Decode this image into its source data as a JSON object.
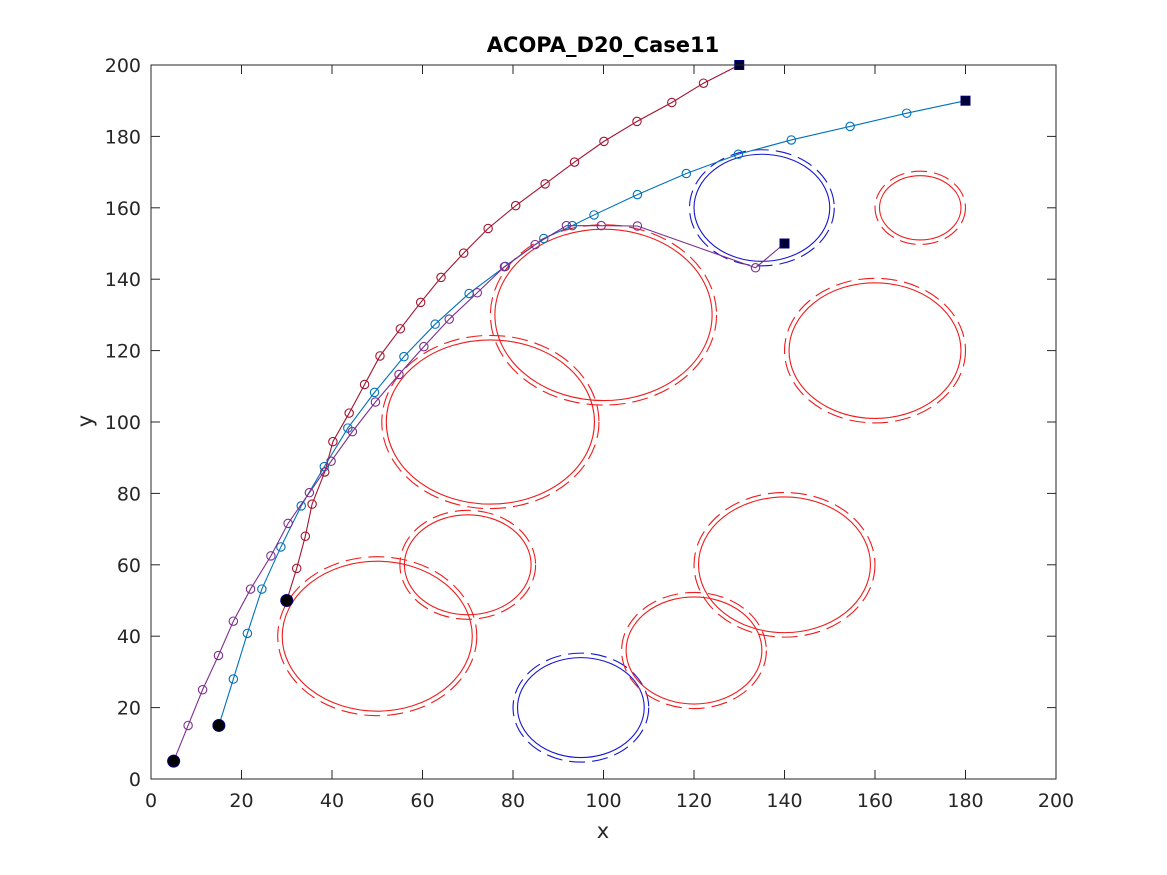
{
  "chart_data": {
    "type": "line",
    "title": "ACOPA_D20_Case11",
    "xlabel": "x",
    "ylabel": "y",
    "xlim": [
      0,
      200
    ],
    "ylim": [
      0,
      200
    ],
    "xticks": [
      0,
      20,
      40,
      60,
      80,
      100,
      120,
      140,
      160,
      180,
      200
    ],
    "yticks": [
      0,
      20,
      40,
      60,
      80,
      100,
      120,
      140,
      160,
      180,
      200
    ],
    "grid": false,
    "obstacles": [
      {
        "name": "obstacle-1",
        "cx": 50,
        "cy": 40,
        "rx": 21,
        "ry": 21,
        "type": "static",
        "color": "#ee1c1c"
      },
      {
        "name": "obstacle-2",
        "cx": 70,
        "cy": 60,
        "rx": 14,
        "ry": 14,
        "type": "static",
        "color": "#ee1c1c"
      },
      {
        "name": "obstacle-3",
        "cx": 75,
        "cy": 100,
        "rx": 23,
        "ry": 23,
        "type": "static",
        "color": "#ee1c1c"
      },
      {
        "name": "obstacle-4",
        "cx": 100,
        "cy": 130,
        "rx": 24,
        "ry": 24,
        "type": "static",
        "color": "#ee1c1c"
      },
      {
        "name": "obstacle-5",
        "cx": 95,
        "cy": 20,
        "rx": 14,
        "ry": 14,
        "type": "dynamic",
        "color": "#1515d0"
      },
      {
        "name": "obstacle-6",
        "cx": 120,
        "cy": 36,
        "rx": 15,
        "ry": 15,
        "type": "static",
        "color": "#ee1c1c"
      },
      {
        "name": "obstacle-7",
        "cx": 140,
        "cy": 60,
        "rx": 19,
        "ry": 19,
        "type": "static",
        "color": "#ee1c1c"
      },
      {
        "name": "obstacle-8",
        "cx": 160,
        "cy": 120,
        "rx": 19,
        "ry": 19,
        "type": "static",
        "color": "#ee1c1c"
      },
      {
        "name": "obstacle-9",
        "cx": 170,
        "cy": 160,
        "rx": 9,
        "ry": 9,
        "type": "static",
        "color": "#ee1c1c"
      },
      {
        "name": "obstacle-10",
        "cx": 135,
        "cy": 160,
        "rx": 15,
        "ry": 15,
        "type": "dynamic",
        "color": "#1515d0"
      }
    ],
    "series": [
      {
        "color": "#a2142f",
        "start": [
          30,
          50
        ],
        "goal": [
          130,
          200
        ],
        "x": [
          30,
          32.2,
          34.1,
          35.6,
          38.4,
          40.2,
          43.8,
          47.2,
          50.6,
          55.1,
          59.6,
          64.1,
          69.1,
          74.5,
          80.6,
          87.1,
          93.6,
          100.1,
          107.4,
          115.1,
          122.1,
          130
        ],
        "y": [
          50,
          59,
          68,
          77,
          86,
          94.5,
          102.5,
          110.5,
          118.5,
          126.1,
          133.5,
          140.5,
          147.3,
          154.2,
          160.6,
          166.7,
          172.8,
          178.6,
          184.2,
          189.5,
          194.9,
          200
        ]
      },
      {
        "color": "#0072bd",
        "start": [
          15,
          15
        ],
        "goal": [
          180,
          190
        ],
        "x": [
          15,
          18.2,
          21.3,
          24.5,
          28.7,
          33.2,
          38.3,
          43.5,
          49.4,
          55.9,
          62.8,
          70.3,
          78.3,
          86.8,
          93.1,
          97.9,
          107.5,
          118.3,
          129.8,
          141.5,
          154.5,
          167,
          180
        ],
        "y": [
          15,
          28,
          40.8,
          53.2,
          65,
          76.5,
          87.5,
          98.3,
          108.3,
          118.3,
          127.4,
          136,
          143.6,
          151.4,
          155,
          158,
          163.7,
          169.6,
          175,
          179,
          182.8,
          186.5,
          190
        ]
      },
      {
        "color": "#7e2f8e",
        "start": [
          5,
          5
        ],
        "goal": [
          140,
          150
        ],
        "x": [
          5,
          8.2,
          11.4,
          14.9,
          18.2,
          22,
          26.5,
          30.3,
          35,
          39.8,
          44.5,
          49.6,
          54.8,
          60.3,
          65.9,
          72.1,
          78.1,
          84.9,
          91.8,
          99.5,
          107.5,
          133.6,
          140
        ],
        "y": [
          5,
          15,
          25,
          34.6,
          44.2,
          53.2,
          62.5,
          71.6,
          80.2,
          89,
          97.3,
          105.6,
          113.3,
          121.1,
          128.8,
          136.2,
          143.5,
          149.7,
          155,
          155,
          154.9,
          143.2,
          150
        ]
      }
    ]
  }
}
